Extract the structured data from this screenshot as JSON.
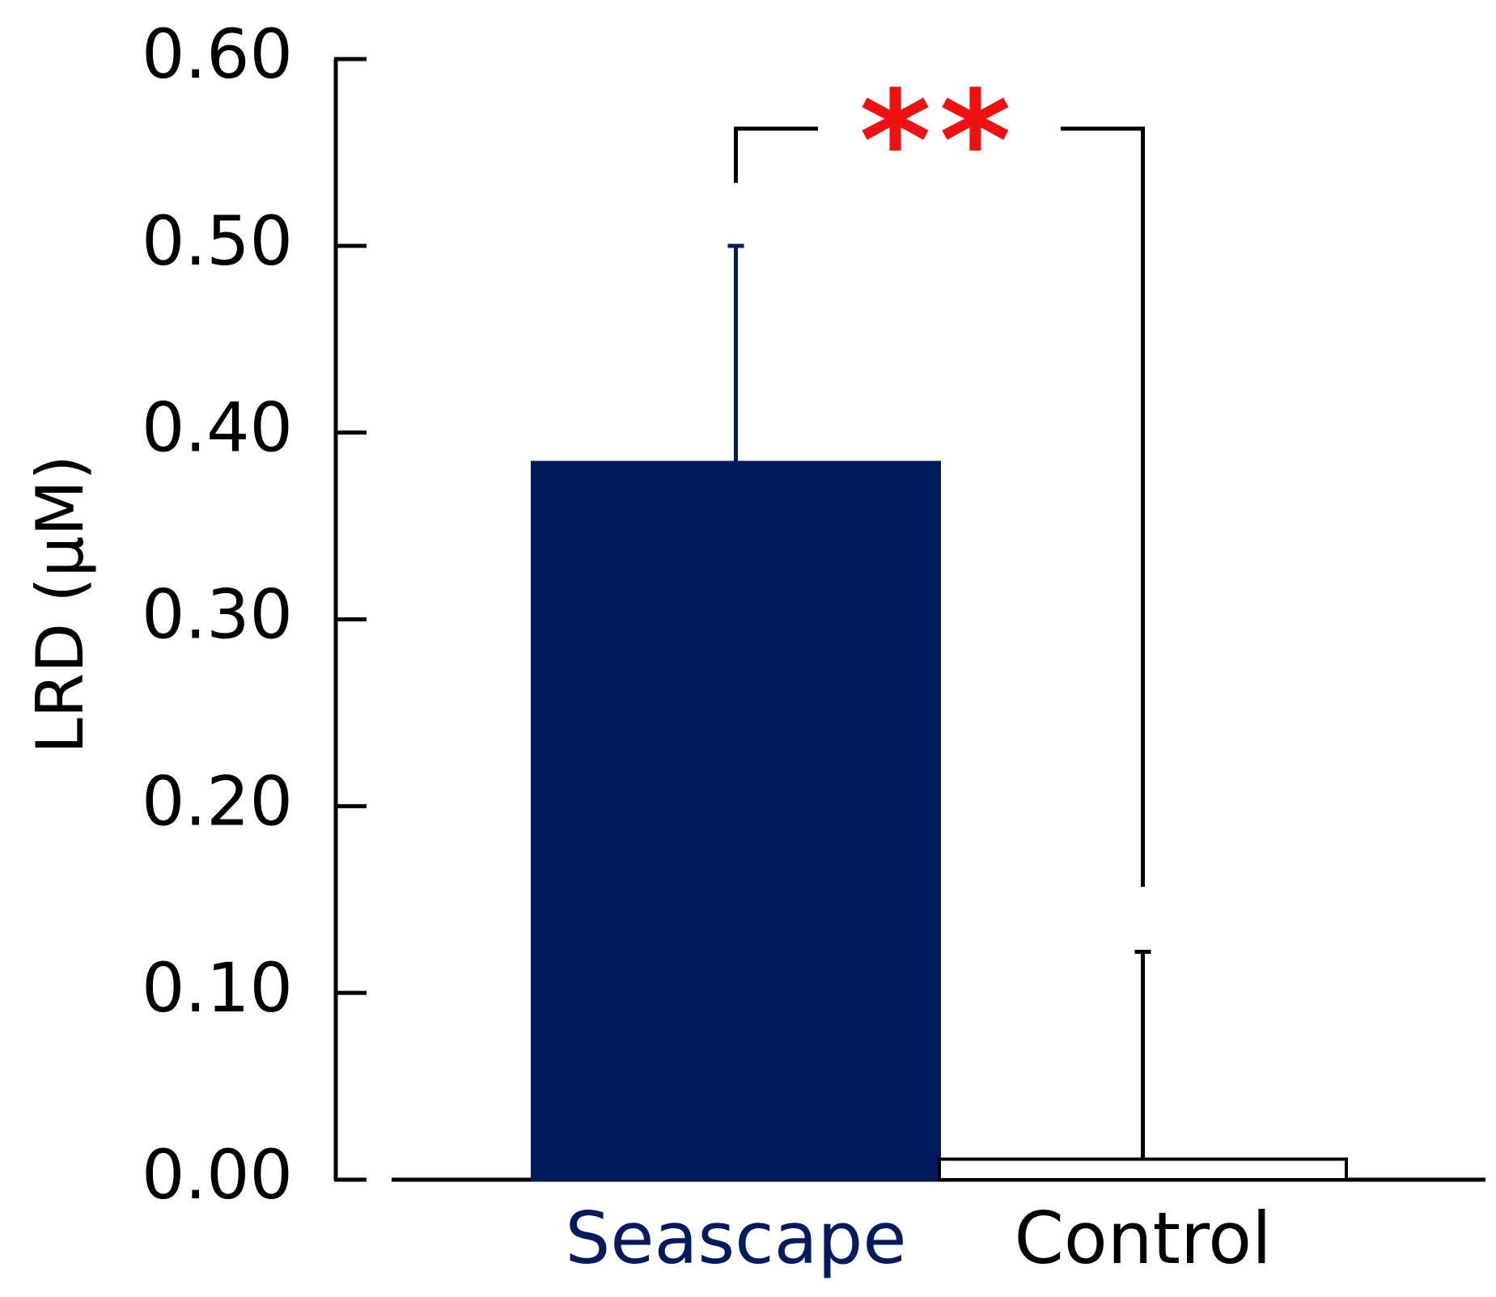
{
  "chart_data": {
    "type": "bar",
    "y_label": "LRD (μM)",
    "categories": [
      "Seascape",
      "Control"
    ],
    "values": [
      0.384,
      0.011
    ],
    "errors": [
      0.116,
      0.111
    ],
    "colors": [
      "#001a5e",
      "#ffffff"
    ],
    "label_colors": [
      "#001a5e",
      "#000000"
    ],
    "annotation": "**",
    "annotation_color": "#ee1111",
    "ylim": [
      0,
      0.6
    ],
    "yticks": [
      {
        "value": 0,
        "label": "0.00"
      },
      {
        "value": 0.1,
        "label": "0.10"
      },
      {
        "value": 0.2,
        "label": "0.20"
      },
      {
        "value": 0.3,
        "label": "0.30"
      },
      {
        "value": 0.4,
        "label": "0.40"
      },
      {
        "value": 0.5,
        "label": "0.50"
      },
      {
        "value": 0.6,
        "label": "0.60"
      }
    ]
  }
}
